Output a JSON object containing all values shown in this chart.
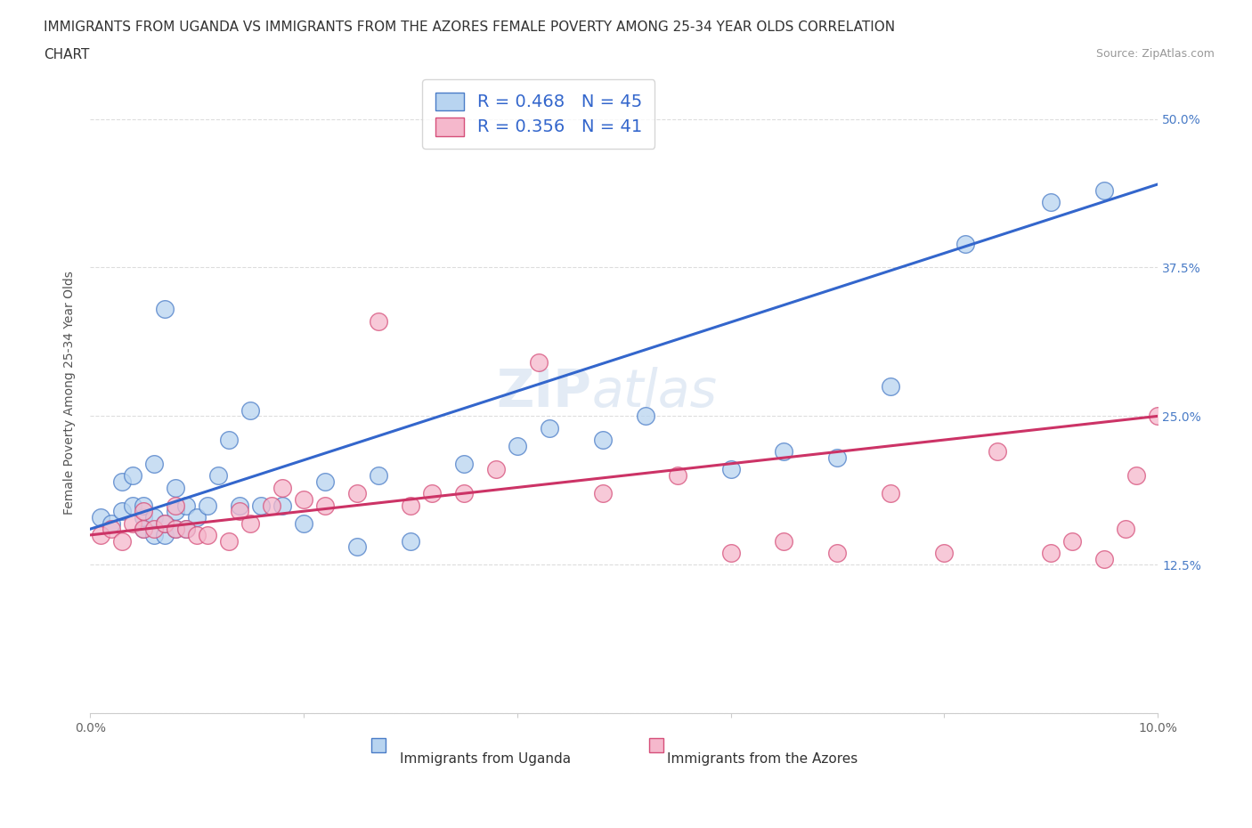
{
  "title_line1": "IMMIGRANTS FROM UGANDA VS IMMIGRANTS FROM THE AZORES FEMALE POVERTY AMONG 25-34 YEAR OLDS CORRELATION",
  "title_line2": "CHART",
  "source_text": "Source: ZipAtlas.com",
  "ylabel": "Female Poverty Among 25-34 Year Olds",
  "xlim": [
    0.0,
    0.1
  ],
  "ylim": [
    0.0,
    0.54
  ],
  "ytick_vals": [
    0.0,
    0.125,
    0.25,
    0.375,
    0.5
  ],
  "ytick_labels": [
    "",
    "12.5%",
    "25.0%",
    "37.5%",
    "50.0%"
  ],
  "xtick_vals": [
    0.0,
    0.02,
    0.04,
    0.06,
    0.08,
    0.1
  ],
  "xtick_labels": [
    "0.0%",
    "",
    "",
    "",
    "",
    "10.0%"
  ],
  "blue_fill": "#b8d4f0",
  "blue_edge": "#4a7cc7",
  "pink_fill": "#f5b8cc",
  "pink_edge": "#d64f7a",
  "blue_line": "#3366cc",
  "pink_line": "#cc3366",
  "watermark": "ZIPatlas",
  "uganda_x": [
    0.001,
    0.002,
    0.003,
    0.003,
    0.004,
    0.004,
    0.005,
    0.005,
    0.005,
    0.006,
    0.006,
    0.006,
    0.007,
    0.007,
    0.007,
    0.008,
    0.008,
    0.008,
    0.009,
    0.009,
    0.01,
    0.011,
    0.012,
    0.013,
    0.014,
    0.015,
    0.016,
    0.018,
    0.02,
    0.022,
    0.025,
    0.027,
    0.03,
    0.035,
    0.04,
    0.043,
    0.048,
    0.052,
    0.06,
    0.065,
    0.07,
    0.075,
    0.082,
    0.09,
    0.095
  ],
  "uganda_y": [
    0.165,
    0.16,
    0.17,
    0.195,
    0.175,
    0.2,
    0.155,
    0.165,
    0.175,
    0.15,
    0.165,
    0.21,
    0.15,
    0.16,
    0.34,
    0.155,
    0.17,
    0.19,
    0.155,
    0.175,
    0.165,
    0.175,
    0.2,
    0.23,
    0.175,
    0.255,
    0.175,
    0.175,
    0.16,
    0.195,
    0.14,
    0.2,
    0.145,
    0.21,
    0.225,
    0.24,
    0.23,
    0.25,
    0.205,
    0.22,
    0.215,
    0.275,
    0.395,
    0.43,
    0.44
  ],
  "azores_x": [
    0.001,
    0.002,
    0.003,
    0.004,
    0.005,
    0.005,
    0.006,
    0.007,
    0.008,
    0.008,
    0.009,
    0.01,
    0.011,
    0.013,
    0.014,
    0.015,
    0.017,
    0.018,
    0.02,
    0.022,
    0.025,
    0.027,
    0.03,
    0.032,
    0.035,
    0.038,
    0.042,
    0.048,
    0.055,
    0.06,
    0.065,
    0.07,
    0.075,
    0.08,
    0.085,
    0.09,
    0.092,
    0.095,
    0.097,
    0.098,
    0.1
  ],
  "azores_y": [
    0.15,
    0.155,
    0.145,
    0.16,
    0.155,
    0.17,
    0.155,
    0.16,
    0.155,
    0.175,
    0.155,
    0.15,
    0.15,
    0.145,
    0.17,
    0.16,
    0.175,
    0.19,
    0.18,
    0.175,
    0.185,
    0.33,
    0.175,
    0.185,
    0.185,
    0.205,
    0.295,
    0.185,
    0.2,
    0.135,
    0.145,
    0.135,
    0.185,
    0.135,
    0.22,
    0.135,
    0.145,
    0.13,
    0.155,
    0.2,
    0.25
  ],
  "uganda_line_x": [
    0.0,
    0.1
  ],
  "uganda_line_y": [
    0.155,
    0.445
  ],
  "azores_line_x": [
    0.0,
    0.1
  ],
  "azores_line_y": [
    0.15,
    0.25
  ],
  "bg_color": "#ffffff",
  "grid_color": "#dddddd",
  "title_fs": 11,
  "ylabel_fs": 10,
  "tick_fs": 10,
  "legend_fs": 13
}
